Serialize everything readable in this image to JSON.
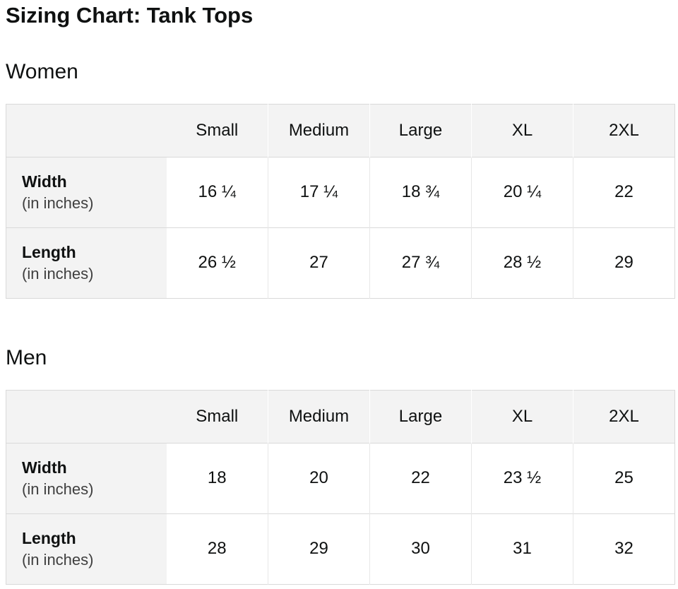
{
  "page_title": "Sizing Chart: Tank Tops",
  "colors": {
    "text": "#0f1111",
    "muted_text": "#3f3f3f",
    "header_bg": "#f3f3f3",
    "border": "#d9d9d9",
    "separator": "#e7e7e7"
  },
  "tables": [
    {
      "section_title": "Women",
      "columns": [
        "Small",
        "Medium",
        "Large",
        "XL",
        "2XL"
      ],
      "rows": [
        {
          "label": "Width",
          "sublabel": "(in inches)",
          "values": [
            "16 ¼",
            "17 ¼",
            "18 ¾",
            "20 ¼",
            "22"
          ]
        },
        {
          "label": "Length",
          "sublabel": "(in inches)",
          "values": [
            "26 ½",
            "27",
            "27 ¾",
            "28 ½",
            "29"
          ]
        }
      ]
    },
    {
      "section_title": "Men",
      "columns": [
        "Small",
        "Medium",
        "Large",
        "XL",
        "2XL"
      ],
      "rows": [
        {
          "label": "Width",
          "sublabel": "(in inches)",
          "values": [
            "18",
            "20",
            "22",
            "23 ½",
            "25"
          ]
        },
        {
          "label": "Length",
          "sublabel": "(in inches)",
          "values": [
            "28",
            "29",
            "30",
            "31",
            "32"
          ]
        }
      ]
    }
  ]
}
